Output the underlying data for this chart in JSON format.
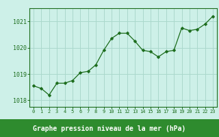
{
  "x": [
    0,
    1,
    2,
    3,
    4,
    5,
    6,
    7,
    8,
    9,
    10,
    11,
    12,
    13,
    14,
    15,
    16,
    17,
    18,
    19,
    20,
    21,
    22,
    23
  ],
  "y": [
    1018.55,
    1018.45,
    1018.2,
    1018.65,
    1018.65,
    1018.75,
    1019.05,
    1019.1,
    1019.35,
    1019.9,
    1020.35,
    1020.55,
    1020.55,
    1020.25,
    1019.9,
    1019.85,
    1019.65,
    1019.85,
    1019.9,
    1020.75,
    1020.65,
    1020.7,
    1020.9,
    1021.2
  ],
  "line_color": "#1a6b1a",
  "marker": "D",
  "marker_size": 2.5,
  "bg_color": "#cdf0e8",
  "bottom_bg_color": "#2e8b2e",
  "grid_color": "#aad8cc",
  "xlabel": "Graphe pression niveau de la mer (hPa)",
  "xlabel_color": "#ffffff",
  "tick_color": "#1a6b1a",
  "bottom_tick_color": "#ffffff",
  "ylim": [
    1017.75,
    1021.5
  ],
  "yticks": [
    1018,
    1019,
    1020,
    1021
  ],
  "xlim": [
    -0.5,
    23.5
  ],
  "xticks": [
    0,
    1,
    2,
    3,
    4,
    5,
    6,
    7,
    8,
    9,
    10,
    11,
    12,
    13,
    14,
    15,
    16,
    17,
    18,
    19,
    20,
    21,
    22,
    23
  ],
  "spine_color": "#1a6b1a"
}
